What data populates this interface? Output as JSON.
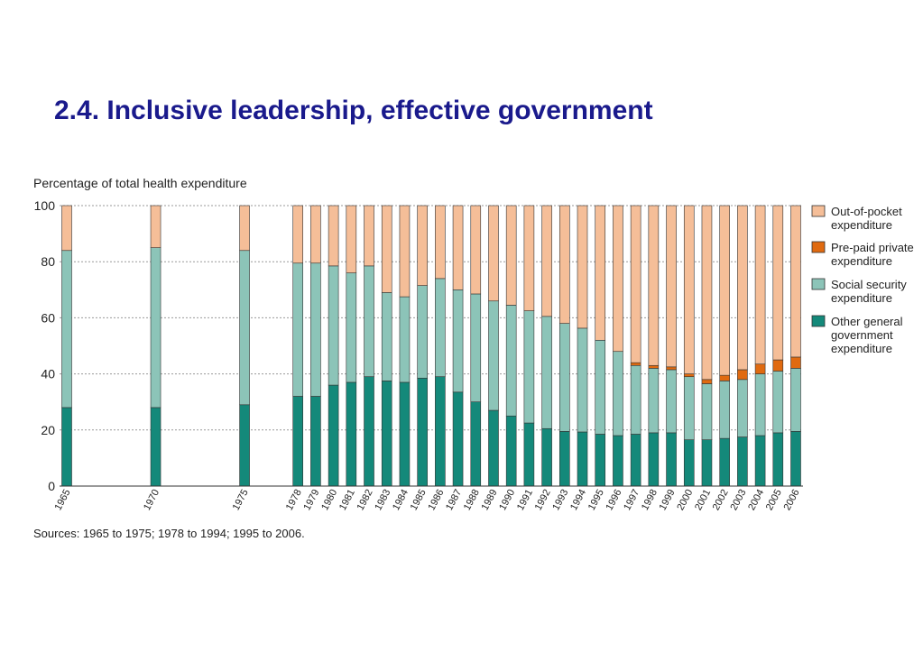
{
  "slide": {
    "title": "2.4. Inclusive leadership, effective government"
  },
  "chart_data": {
    "type": "bar",
    "stacked": true,
    "title": "",
    "ylabel": "Percentage of total health expenditure",
    "xlabel": "",
    "ylim": [
      0,
      100
    ],
    "yticks": [
      0,
      20,
      40,
      60,
      80,
      100
    ],
    "grid": true,
    "legend_position": "right",
    "source_note": "Sources: 1965 to 1975; 1978 to 1994; 1995 to 2006.",
    "categories": [
      "1965",
      "1970",
      "1975",
      "1978",
      "1979",
      "1980",
      "1981",
      "1982",
      "1983",
      "1984",
      "1985",
      "1986",
      "1987",
      "1988",
      "1989",
      "1990",
      "1991",
      "1992",
      "1993",
      "1994",
      "1995",
      "1996",
      "1997",
      "1998",
      "1999",
      "2000",
      "2001",
      "2002",
      "2003",
      "2004",
      "2005",
      "2006"
    ],
    "series": [
      {
        "name": "Other general government expenditure",
        "color": "#14897a",
        "values": [
          28,
          28,
          29,
          32,
          32,
          36,
          37,
          39,
          37.5,
          37,
          38.5,
          39,
          33.5,
          30,
          27,
          25,
          22.5,
          20.5,
          19.5,
          19.3,
          18.5,
          18,
          18.5,
          19,
          19,
          16.5,
          16.5,
          17,
          17.5,
          18,
          19,
          19.5
        ]
      },
      {
        "name": "Social security expenditure",
        "color": "#8cc4b8",
        "values": [
          56,
          57,
          55,
          47.5,
          47.5,
          42.5,
          39,
          39.5,
          31.5,
          30.5,
          33,
          35,
          36.5,
          38.5,
          39,
          39.5,
          40,
          40,
          38.5,
          37,
          33.5,
          30,
          24.5,
          23,
          22.5,
          22.5,
          20,
          20.5,
          20.5,
          22,
          22,
          22.5
        ]
      },
      {
        "name": "Pre-paid private expenditure",
        "color": "#e06a10",
        "values": [
          0,
          0,
          0,
          0,
          0,
          0,
          0,
          0,
          0,
          0,
          0,
          0,
          0,
          0,
          0,
          0,
          0,
          0,
          0,
          0,
          0,
          0,
          1,
          1,
          1,
          1,
          1.5,
          2,
          3.5,
          3.5,
          4,
          4
        ]
      },
      {
        "name": "Out-of-pocket expenditure",
        "color": "#f5be98",
        "values": [
          16,
          15,
          16,
          20.5,
          20.5,
          21.5,
          24,
          21.5,
          31,
          32.5,
          28.5,
          26,
          30,
          31.5,
          34,
          35.5,
          37.5,
          39.5,
          42,
          43.7,
          48,
          52,
          56,
          57,
          57.5,
          60,
          62,
          60.5,
          58.5,
          56.5,
          55,
          54
        ]
      }
    ],
    "legend": [
      {
        "label_lines": [
          "Out-of-pocket",
          "expenditure"
        ],
        "color": "#f5be98"
      },
      {
        "label_lines": [
          "Pre-paid private",
          "expenditure"
        ],
        "color": "#e06a10"
      },
      {
        "label_lines": [
          "Social security",
          "expenditure"
        ],
        "color": "#8cc4b8"
      },
      {
        "label_lines": [
          "Other general",
          "government",
          "expenditure"
        ],
        "color": "#14897a"
      }
    ]
  }
}
